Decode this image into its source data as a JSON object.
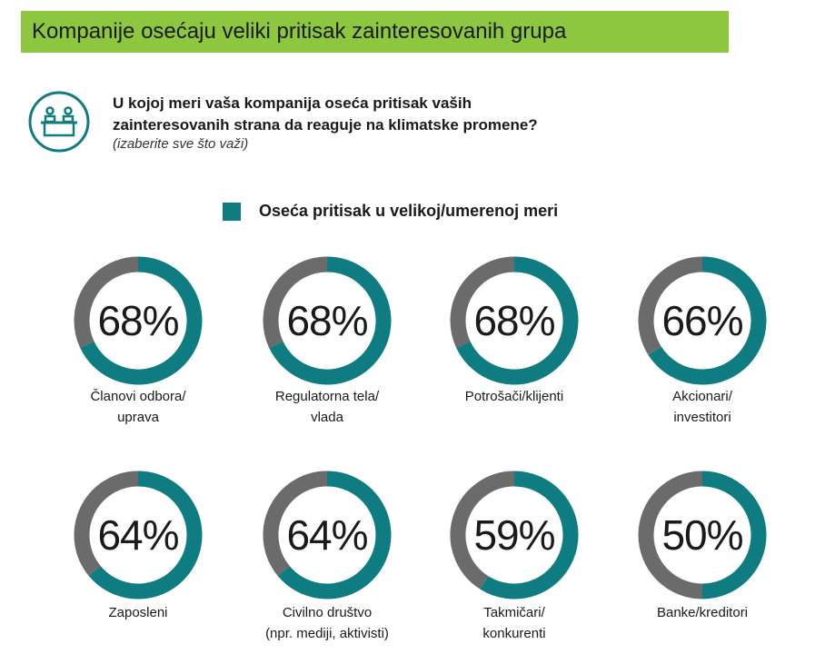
{
  "banner": {
    "title": "Kompanije osećaju veliki pritisak zainteresovanih grupa"
  },
  "question": {
    "line1": "U kojoj meri vaša kompanija oseća pritisak vaših",
    "line2": "zainteresovanih strana da reaguje na klimatske promene?",
    "hint": "(izaberite sve što važi)",
    "icon": "stakeholders-desk-icon"
  },
  "colors": {
    "accent": "#0e7c80",
    "remainder": "#6b6b6b",
    "banner": "#8dc63f"
  },
  "chart_data": {
    "type": "donut",
    "legend": {
      "label": "Oseća pritisak u velikoj/umerenoj meri",
      "position": "top"
    },
    "items": [
      {
        "label_lines": [
          "Članovi odbora/",
          "uprava"
        ],
        "value": 68,
        "display": "68%"
      },
      {
        "label_lines": [
          "Regulatorna tela/",
          "vlada"
        ],
        "value": 68,
        "display": "68%"
      },
      {
        "label_lines": [
          "Potrošači/klijenti"
        ],
        "value": 68,
        "display": "68%"
      },
      {
        "label_lines": [
          "Akcionari/",
          "investitori"
        ],
        "value": 66,
        "display": "66%"
      },
      {
        "label_lines": [
          "Zaposleni"
        ],
        "value": 64,
        "display": "64%"
      },
      {
        "label_lines": [
          "Civilno društvo",
          "(npr. mediji, aktivisti)"
        ],
        "value": 64,
        "display": "64%"
      },
      {
        "label_lines": [
          "Takmičari/",
          "konkurenti"
        ],
        "value": 59,
        "display": "59%"
      },
      {
        "label_lines": [
          "Banke/kreditori"
        ],
        "value": 50,
        "display": "50%"
      }
    ]
  }
}
